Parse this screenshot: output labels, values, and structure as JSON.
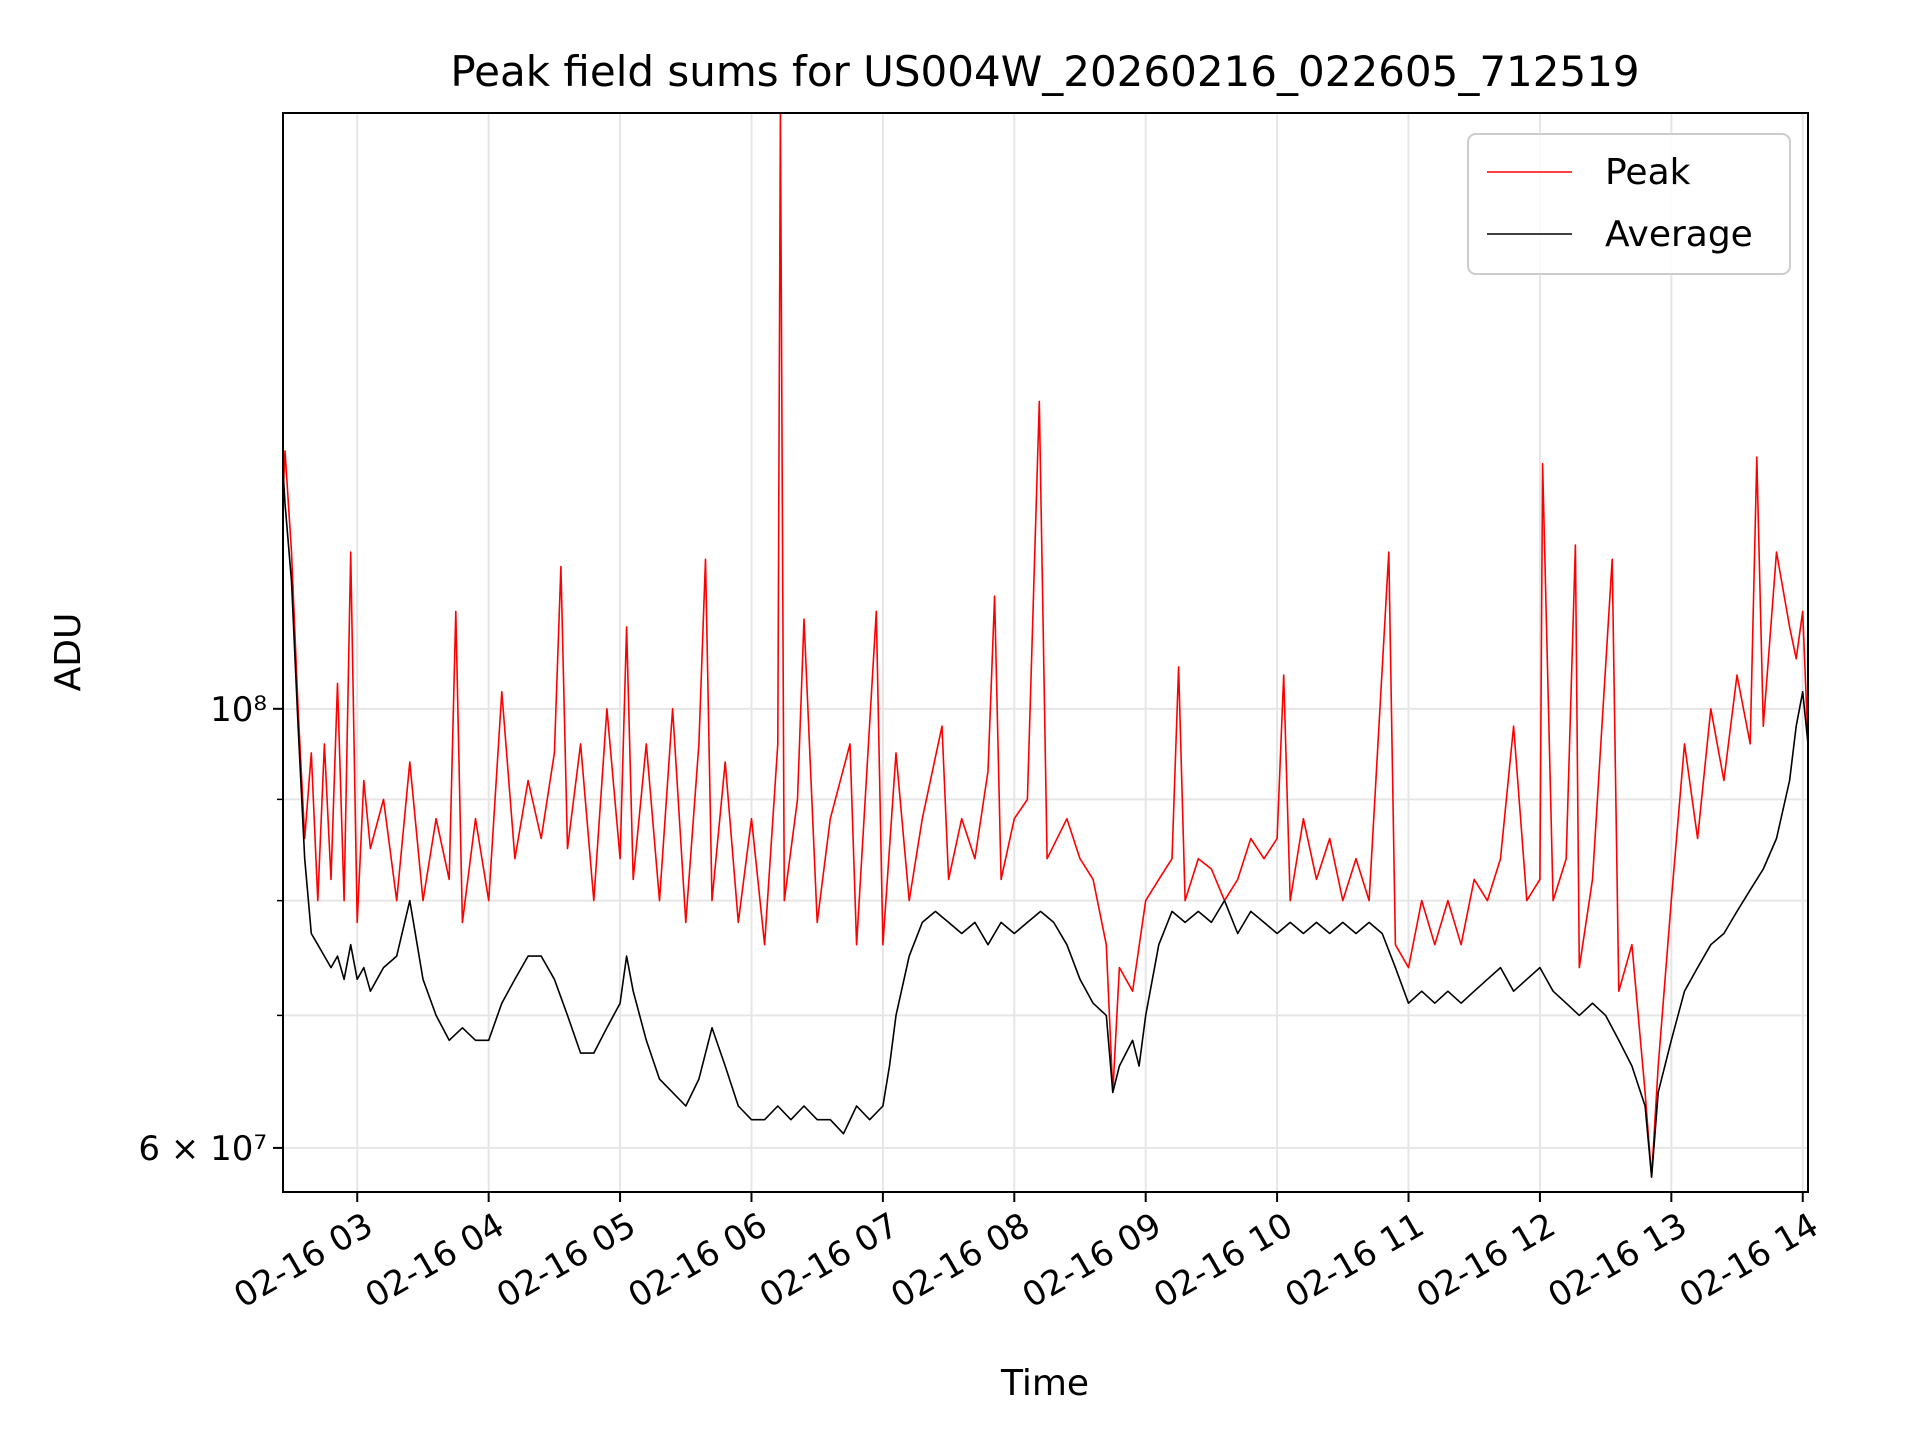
{
  "chart_data": {
    "type": "line",
    "title": "Peak field sums for US004W_20260216_022605_712519",
    "xlabel": "Time",
    "ylabel": "ADU",
    "yscale": "log",
    "ylim": [
      57000000,
      200000000
    ],
    "y_major_ticks": [
      {
        "value": 60000000,
        "label": "6 × 10⁷"
      },
      {
        "value": 100000000,
        "label": "10⁸"
      }
    ],
    "y_minor_ticks": [
      70000000,
      80000000,
      90000000
    ],
    "xlim_hours": [
      2.435,
      14.04
    ],
    "x_ticks": [
      {
        "hour": 3,
        "label": "02-16 03"
      },
      {
        "hour": 4,
        "label": "02-16 04"
      },
      {
        "hour": 5,
        "label": "02-16 05"
      },
      {
        "hour": 6,
        "label": "02-16 06"
      },
      {
        "hour": 7,
        "label": "02-16 07"
      },
      {
        "hour": 8,
        "label": "02-16 08"
      },
      {
        "hour": 9,
        "label": "02-16 09"
      },
      {
        "hour": 10,
        "label": "02-16 10"
      },
      {
        "hour": 11,
        "label": "02-16 11"
      },
      {
        "hour": 12,
        "label": "02-16 12"
      },
      {
        "hour": 13,
        "label": "02-16 13"
      },
      {
        "hour": 14,
        "label": "02-16 14"
      }
    ],
    "grid": true,
    "legend_position": "top-right",
    "series": [
      {
        "name": "Peak",
        "color": "#ff0000",
        "points": [
          [
            2.435,
            128000000
          ],
          [
            2.45,
            135000000
          ],
          [
            2.5,
            120000000
          ],
          [
            2.55,
            100000000
          ],
          [
            2.6,
            86000000
          ],
          [
            2.65,
            95000000
          ],
          [
            2.7,
            80000000
          ],
          [
            2.75,
            96000000
          ],
          [
            2.8,
            82000000
          ],
          [
            2.85,
            103000000
          ],
          [
            2.9,
            80000000
          ],
          [
            2.95,
            120000000
          ],
          [
            3.0,
            78000000
          ],
          [
            3.05,
            92000000
          ],
          [
            3.1,
            85000000
          ],
          [
            3.2,
            90000000
          ],
          [
            3.3,
            80000000
          ],
          [
            3.4,
            94000000
          ],
          [
            3.5,
            80000000
          ],
          [
            3.6,
            88000000
          ],
          [
            3.7,
            82000000
          ],
          [
            3.75,
            112000000
          ],
          [
            3.8,
            78000000
          ],
          [
            3.9,
            88000000
          ],
          [
            4.0,
            80000000
          ],
          [
            4.1,
            102000000
          ],
          [
            4.2,
            84000000
          ],
          [
            4.3,
            92000000
          ],
          [
            4.4,
            86000000
          ],
          [
            4.5,
            95000000
          ],
          [
            4.55,
            118000000
          ],
          [
            4.6,
            85000000
          ],
          [
            4.7,
            96000000
          ],
          [
            4.8,
            80000000
          ],
          [
            4.9,
            100000000
          ],
          [
            5.0,
            84000000
          ],
          [
            5.05,
            110000000
          ],
          [
            5.1,
            82000000
          ],
          [
            5.2,
            96000000
          ],
          [
            5.3,
            80000000
          ],
          [
            5.4,
            100000000
          ],
          [
            5.5,
            78000000
          ],
          [
            5.6,
            96000000
          ],
          [
            5.65,
            119000000
          ],
          [
            5.7,
            80000000
          ],
          [
            5.8,
            94000000
          ],
          [
            5.9,
            78000000
          ],
          [
            6.0,
            88000000
          ],
          [
            6.1,
            76000000
          ],
          [
            6.2,
            96000000
          ],
          [
            6.22,
            200000000
          ],
          [
            6.25,
            80000000
          ],
          [
            6.35,
            90000000
          ],
          [
            6.4,
            111000000
          ],
          [
            6.5,
            78000000
          ],
          [
            6.6,
            88000000
          ],
          [
            6.75,
            96000000
          ],
          [
            6.8,
            76000000
          ],
          [
            6.95,
            112000000
          ],
          [
            7.0,
            76000000
          ],
          [
            7.1,
            95000000
          ],
          [
            7.2,
            80000000
          ],
          [
            7.3,
            88000000
          ],
          [
            7.45,
            98000000
          ],
          [
            7.5,
            82000000
          ],
          [
            7.6,
            88000000
          ],
          [
            7.7,
            84000000
          ],
          [
            7.8,
            93000000
          ],
          [
            7.85,
            114000000
          ],
          [
            7.9,
            82000000
          ],
          [
            8.0,
            88000000
          ],
          [
            8.1,
            90000000
          ],
          [
            8.19,
            143000000
          ],
          [
            8.25,
            84000000
          ],
          [
            8.4,
            88000000
          ],
          [
            8.5,
            84000000
          ],
          [
            8.6,
            82000000
          ],
          [
            8.7,
            76000000
          ],
          [
            8.75,
            64000000
          ],
          [
            8.8,
            74000000
          ],
          [
            8.9,
            72000000
          ],
          [
            9.0,
            80000000
          ],
          [
            9.1,
            82000000
          ],
          [
            9.2,
            84000000
          ],
          [
            9.25,
            105000000
          ],
          [
            9.3,
            80000000
          ],
          [
            9.4,
            84000000
          ],
          [
            9.5,
            83000000
          ],
          [
            9.6,
            80000000
          ],
          [
            9.7,
            82000000
          ],
          [
            9.8,
            86000000
          ],
          [
            9.9,
            84000000
          ],
          [
            10.0,
            86000000
          ],
          [
            10.05,
            104000000
          ],
          [
            10.1,
            80000000
          ],
          [
            10.2,
            88000000
          ],
          [
            10.3,
            82000000
          ],
          [
            10.4,
            86000000
          ],
          [
            10.5,
            80000000
          ],
          [
            10.6,
            84000000
          ],
          [
            10.7,
            80000000
          ],
          [
            10.85,
            120000000
          ],
          [
            10.9,
            76000000
          ],
          [
            11.0,
            74000000
          ],
          [
            11.1,
            80000000
          ],
          [
            11.2,
            76000000
          ],
          [
            11.3,
            80000000
          ],
          [
            11.4,
            76000000
          ],
          [
            11.5,
            82000000
          ],
          [
            11.6,
            80000000
          ],
          [
            11.7,
            84000000
          ],
          [
            11.8,
            98000000
          ],
          [
            11.9,
            80000000
          ],
          [
            12.0,
            82000000
          ],
          [
            12.02,
            133000000
          ],
          [
            12.1,
            80000000
          ],
          [
            12.2,
            84000000
          ],
          [
            12.27,
            121000000
          ],
          [
            12.3,
            74000000
          ],
          [
            12.4,
            82000000
          ],
          [
            12.55,
            119000000
          ],
          [
            12.6,
            72000000
          ],
          [
            12.7,
            76000000
          ],
          [
            12.8,
            64000000
          ],
          [
            12.85,
            58000000
          ],
          [
            12.9,
            66000000
          ],
          [
            13.0,
            80000000
          ],
          [
            13.1,
            96000000
          ],
          [
            13.2,
            86000000
          ],
          [
            13.3,
            100000000
          ],
          [
            13.4,
            92000000
          ],
          [
            13.5,
            104000000
          ],
          [
            13.6,
            96000000
          ],
          [
            13.65,
            134000000
          ],
          [
            13.7,
            98000000
          ],
          [
            13.8,
            120000000
          ],
          [
            13.9,
            110000000
          ],
          [
            13.95,
            106000000
          ],
          [
            14.0,
            112000000
          ],
          [
            14.04,
            96000000
          ]
        ]
      },
      {
        "name": "Average",
        "color": "#000000",
        "points": [
          [
            2.435,
            132000000
          ],
          [
            2.45,
            127000000
          ],
          [
            2.5,
            116000000
          ],
          [
            2.55,
            98000000
          ],
          [
            2.6,
            84000000
          ],
          [
            2.65,
            77000000
          ],
          [
            2.7,
            76000000
          ],
          [
            2.75,
            75000000
          ],
          [
            2.8,
            74000000
          ],
          [
            2.85,
            75000000
          ],
          [
            2.9,
            73000000
          ],
          [
            2.95,
            76000000
          ],
          [
            3.0,
            73000000
          ],
          [
            3.05,
            74000000
          ],
          [
            3.1,
            72000000
          ],
          [
            3.2,
            74000000
          ],
          [
            3.3,
            75000000
          ],
          [
            3.4,
            80000000
          ],
          [
            3.5,
            73000000
          ],
          [
            3.6,
            70000000
          ],
          [
            3.7,
            68000000
          ],
          [
            3.8,
            69000000
          ],
          [
            3.9,
            68000000
          ],
          [
            4.0,
            68000000
          ],
          [
            4.1,
            71000000
          ],
          [
            4.2,
            73000000
          ],
          [
            4.3,
            75000000
          ],
          [
            4.4,
            75000000
          ],
          [
            4.5,
            73000000
          ],
          [
            4.6,
            70000000
          ],
          [
            4.7,
            67000000
          ],
          [
            4.8,
            67000000
          ],
          [
            4.9,
            69000000
          ],
          [
            5.0,
            71000000
          ],
          [
            5.05,
            75000000
          ],
          [
            5.1,
            72000000
          ],
          [
            5.2,
            68000000
          ],
          [
            5.3,
            65000000
          ],
          [
            5.4,
            64000000
          ],
          [
            5.5,
            63000000
          ],
          [
            5.6,
            65000000
          ],
          [
            5.7,
            69000000
          ],
          [
            5.8,
            66000000
          ],
          [
            5.9,
            63000000
          ],
          [
            6.0,
            62000000
          ],
          [
            6.1,
            62000000
          ],
          [
            6.2,
            63000000
          ],
          [
            6.3,
            62000000
          ],
          [
            6.4,
            63000000
          ],
          [
            6.5,
            62000000
          ],
          [
            6.6,
            62000000
          ],
          [
            6.7,
            61000000
          ],
          [
            6.8,
            63000000
          ],
          [
            6.9,
            62000000
          ],
          [
            7.0,
            63000000
          ],
          [
            7.05,
            66000000
          ],
          [
            7.1,
            70000000
          ],
          [
            7.2,
            75000000
          ],
          [
            7.3,
            78000000
          ],
          [
            7.4,
            79000000
          ],
          [
            7.5,
            78000000
          ],
          [
            7.6,
            77000000
          ],
          [
            7.7,
            78000000
          ],
          [
            7.8,
            76000000
          ],
          [
            7.9,
            78000000
          ],
          [
            8.0,
            77000000
          ],
          [
            8.1,
            78000000
          ],
          [
            8.2,
            79000000
          ],
          [
            8.3,
            78000000
          ],
          [
            8.4,
            76000000
          ],
          [
            8.5,
            73000000
          ],
          [
            8.6,
            71000000
          ],
          [
            8.7,
            70000000
          ],
          [
            8.75,
            64000000
          ],
          [
            8.8,
            66000000
          ],
          [
            8.9,
            68000000
          ],
          [
            8.95,
            66000000
          ],
          [
            9.0,
            70000000
          ],
          [
            9.1,
            76000000
          ],
          [
            9.2,
            79000000
          ],
          [
            9.3,
            78000000
          ],
          [
            9.4,
            79000000
          ],
          [
            9.5,
            78000000
          ],
          [
            9.6,
            80000000
          ],
          [
            9.7,
            77000000
          ],
          [
            9.8,
            79000000
          ],
          [
            9.9,
            78000000
          ],
          [
            10.0,
            77000000
          ],
          [
            10.1,
            78000000
          ],
          [
            10.2,
            77000000
          ],
          [
            10.3,
            78000000
          ],
          [
            10.4,
            77000000
          ],
          [
            10.5,
            78000000
          ],
          [
            10.6,
            77000000
          ],
          [
            10.7,
            78000000
          ],
          [
            10.8,
            77000000
          ],
          [
            10.9,
            74000000
          ],
          [
            11.0,
            71000000
          ],
          [
            11.1,
            72000000
          ],
          [
            11.2,
            71000000
          ],
          [
            11.3,
            72000000
          ],
          [
            11.4,
            71000000
          ],
          [
            11.5,
            72000000
          ],
          [
            11.6,
            73000000
          ],
          [
            11.7,
            74000000
          ],
          [
            11.8,
            72000000
          ],
          [
            11.9,
            73000000
          ],
          [
            12.0,
            74000000
          ],
          [
            12.1,
            72000000
          ],
          [
            12.2,
            71000000
          ],
          [
            12.3,
            70000000
          ],
          [
            12.4,
            71000000
          ],
          [
            12.5,
            70000000
          ],
          [
            12.6,
            68000000
          ],
          [
            12.7,
            66000000
          ],
          [
            12.8,
            63000000
          ],
          [
            12.85,
            58000000
          ],
          [
            12.9,
            64000000
          ],
          [
            13.0,
            68000000
          ],
          [
            13.1,
            72000000
          ],
          [
            13.2,
            74000000
          ],
          [
            13.3,
            76000000
          ],
          [
            13.4,
            77000000
          ],
          [
            13.5,
            79000000
          ],
          [
            13.6,
            81000000
          ],
          [
            13.7,
            83000000
          ],
          [
            13.8,
            86000000
          ],
          [
            13.9,
            92000000
          ],
          [
            13.95,
            98000000
          ],
          [
            14.0,
            102000000
          ],
          [
            14.04,
            96000000
          ]
        ]
      }
    ]
  }
}
